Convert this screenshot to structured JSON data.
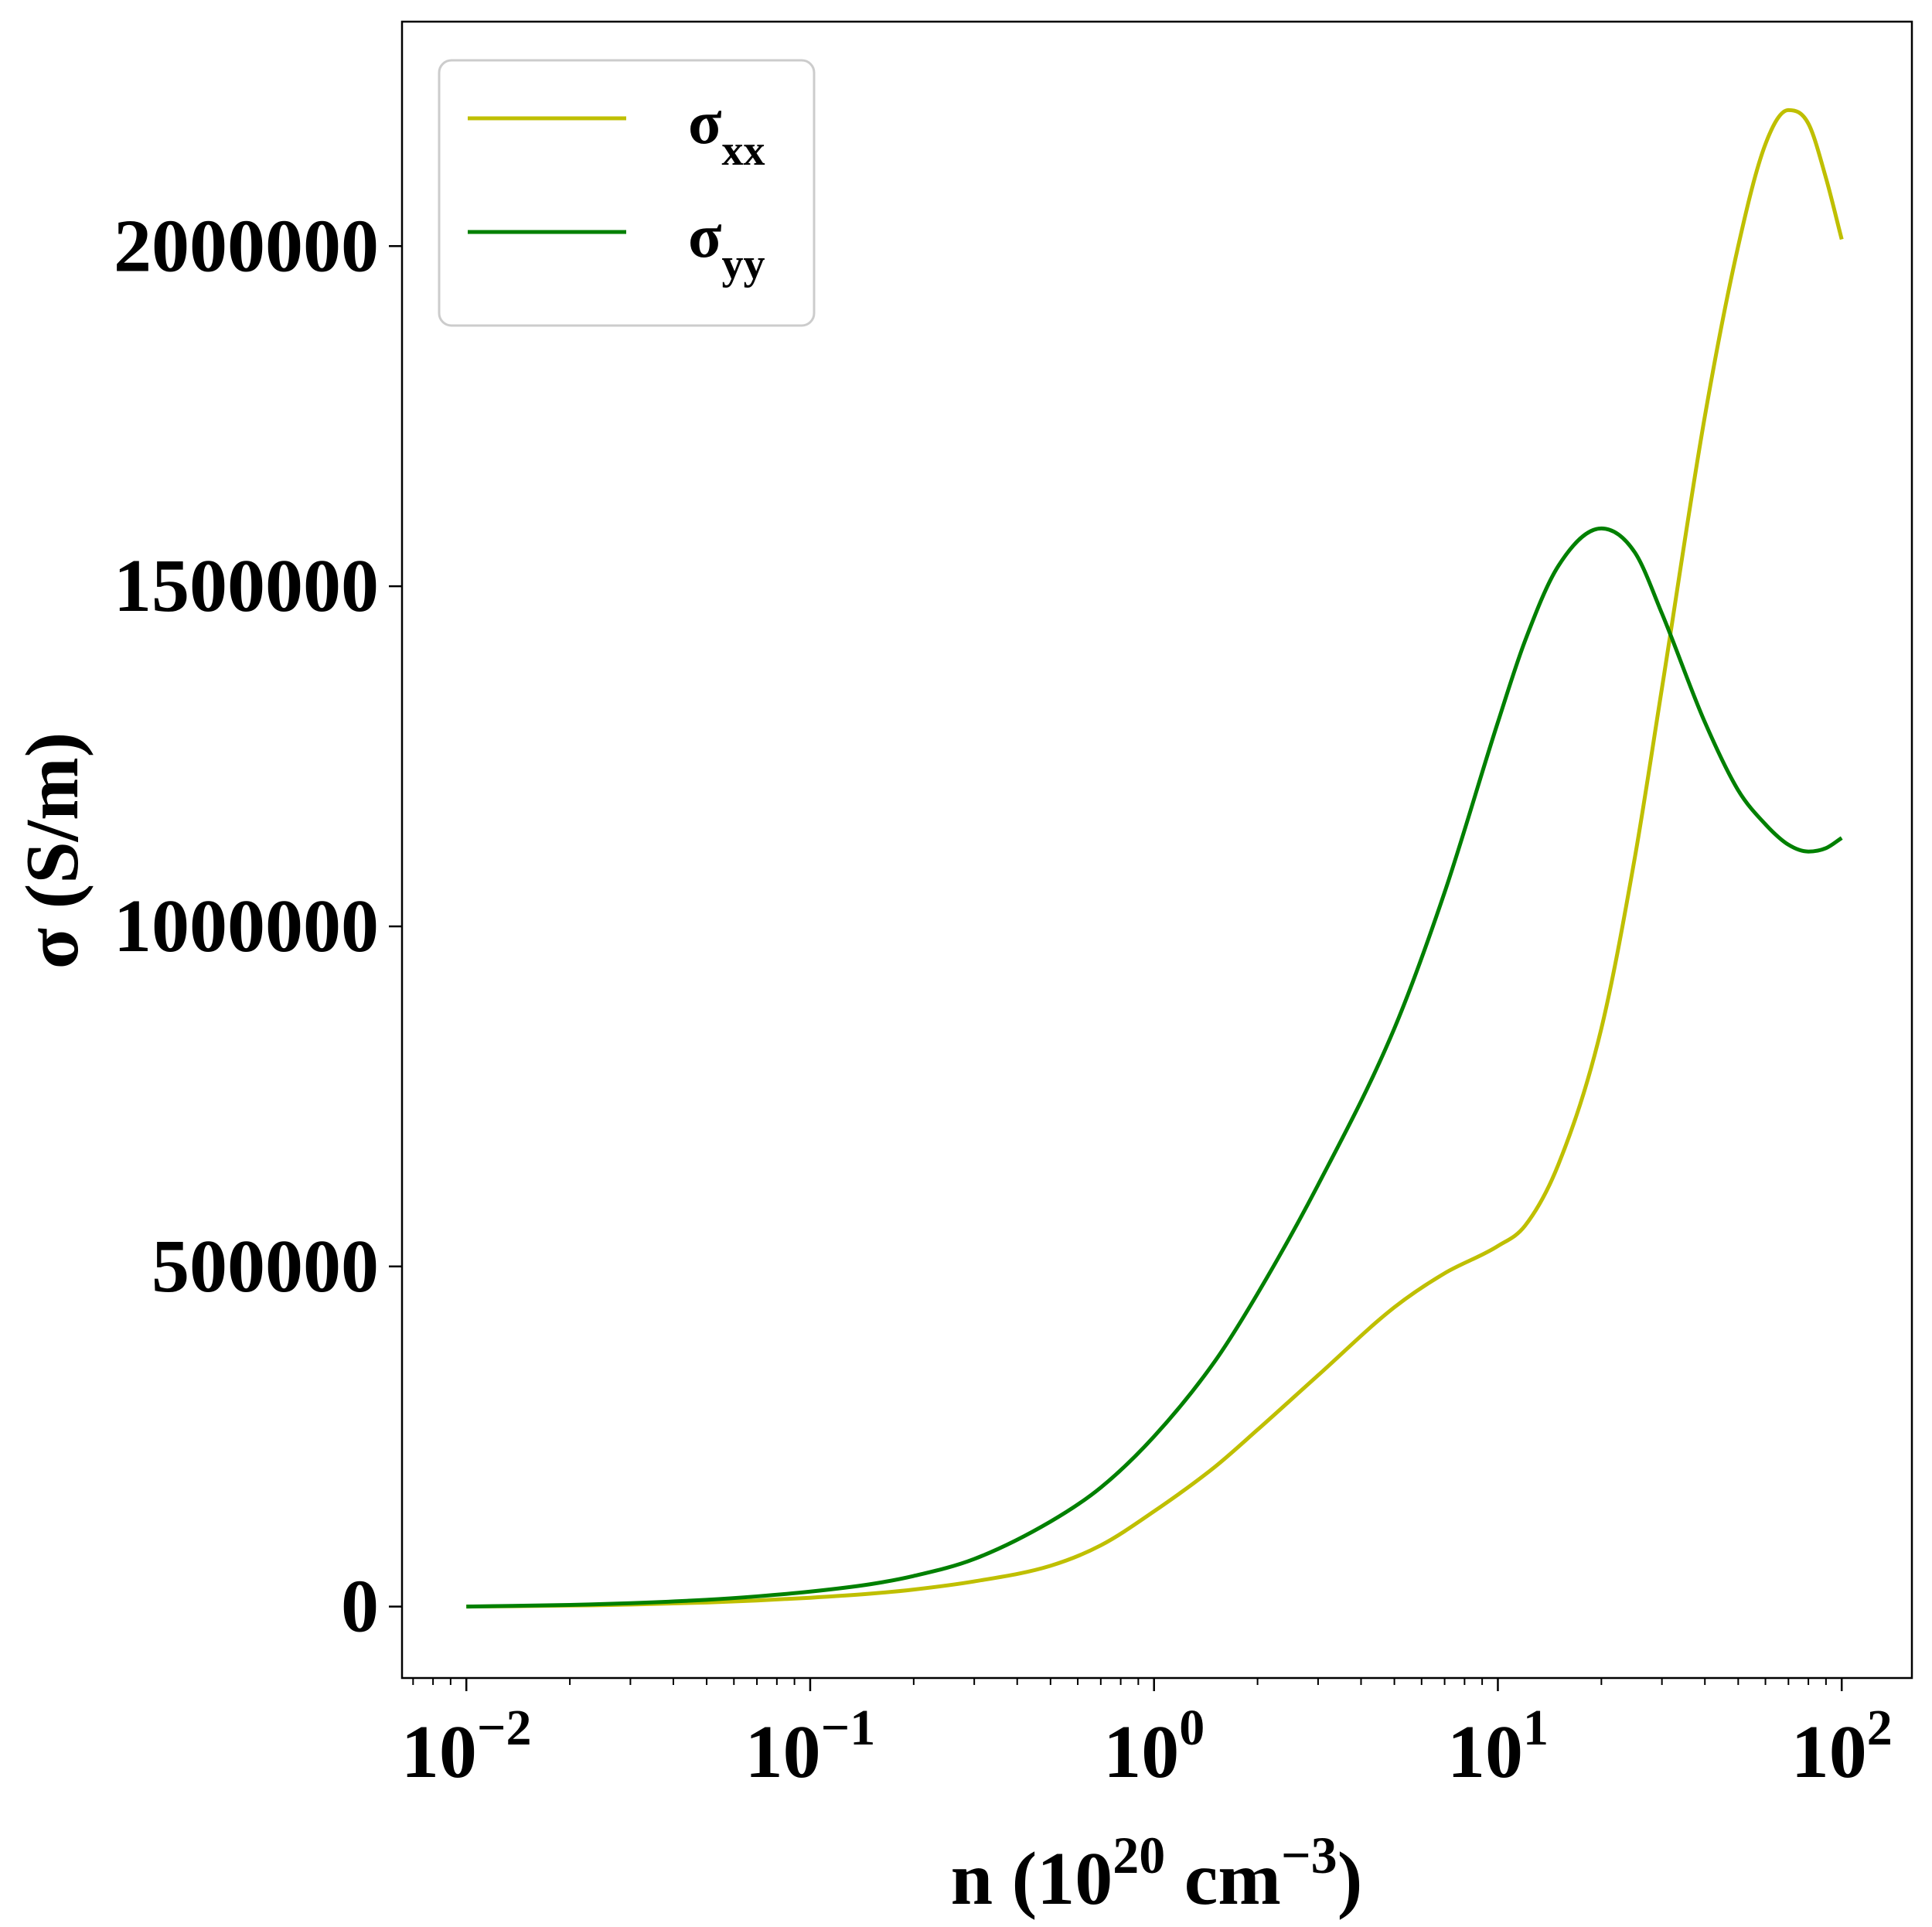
{
  "chart_data": {
    "type": "line",
    "x_scale": "log",
    "xlim": [
      0.0065,
      160
    ],
    "ylim": [
      -105000,
      2330000
    ],
    "grid": false,
    "legend_position": "upper-left",
    "xlabel": {
      "base": "n (10",
      "sup1": "20",
      "mid": " cm",
      "sup2": "−3",
      "end": ")"
    },
    "ylabel": "σ (S/m)",
    "x_ticks": [
      {
        "value": 0.01,
        "base": "10",
        "exp": "−2"
      },
      {
        "value": 0.1,
        "base": "10",
        "exp": "−1"
      },
      {
        "value": 1,
        "base": "10",
        "exp": "0"
      },
      {
        "value": 10,
        "base": "10",
        "exp": "1"
      },
      {
        "value": 100,
        "base": "10",
        "exp": "2"
      }
    ],
    "y_ticks": [
      {
        "value": 0,
        "label": "0"
      },
      {
        "value": 500000,
        "label": "500000"
      },
      {
        "value": 1000000,
        "label": "1000000"
      },
      {
        "value": 1500000,
        "label": "1500000"
      },
      {
        "value": 2000000,
        "label": "2000000"
      }
    ],
    "series": [
      {
        "name": "σxx",
        "label_main": "σ",
        "label_sub": "xx",
        "color": "#bfbf00",
        "points": [
          [
            0.01,
            0
          ],
          [
            0.02,
            1500
          ],
          [
            0.03,
            3000
          ],
          [
            0.05,
            6000
          ],
          [
            0.07,
            9000
          ],
          [
            0.1,
            13000
          ],
          [
            0.15,
            19000
          ],
          [
            0.2,
            25000
          ],
          [
            0.3,
            37000
          ],
          [
            0.5,
            60000
          ],
          [
            0.7,
            90000
          ],
          [
            1,
            140000
          ],
          [
            1.5,
            205000
          ],
          [
            2,
            260000
          ],
          [
            3,
            340000
          ],
          [
            5,
            440000
          ],
          [
            7,
            490000
          ],
          [
            10,
            530000
          ],
          [
            12,
            560000
          ],
          [
            15,
            650000
          ],
          [
            20,
            850000
          ],
          [
            25,
            1100000
          ],
          [
            30,
            1350000
          ],
          [
            40,
            1750000
          ],
          [
            50,
            2000000
          ],
          [
            60,
            2150000
          ],
          [
            70,
            2200000
          ],
          [
            80,
            2180000
          ],
          [
            90,
            2100000
          ],
          [
            100,
            2010000
          ]
        ]
      },
      {
        "name": "σyy",
        "label_main": "σ",
        "label_sub": "yy",
        "color": "#008000",
        "points": [
          [
            0.01,
            0
          ],
          [
            0.02,
            2500
          ],
          [
            0.03,
            5000
          ],
          [
            0.05,
            10000
          ],
          [
            0.07,
            15000
          ],
          [
            0.1,
            22000
          ],
          [
            0.15,
            33000
          ],
          [
            0.2,
            45000
          ],
          [
            0.3,
            70000
          ],
          [
            0.5,
            125000
          ],
          [
            0.7,
            175000
          ],
          [
            1,
            250000
          ],
          [
            1.5,
            360000
          ],
          [
            2,
            460000
          ],
          [
            3,
            620000
          ],
          [
            5,
            850000
          ],
          [
            7,
            1050000
          ],
          [
            10,
            1300000
          ],
          [
            12,
            1420000
          ],
          [
            15,
            1530000
          ],
          [
            20,
            1585000
          ],
          [
            25,
            1550000
          ],
          [
            30,
            1460000
          ],
          [
            40,
            1300000
          ],
          [
            50,
            1200000
          ],
          [
            60,
            1150000
          ],
          [
            70,
            1120000
          ],
          [
            80,
            1110000
          ],
          [
            90,
            1115000
          ],
          [
            100,
            1130000
          ]
        ]
      }
    ]
  }
}
